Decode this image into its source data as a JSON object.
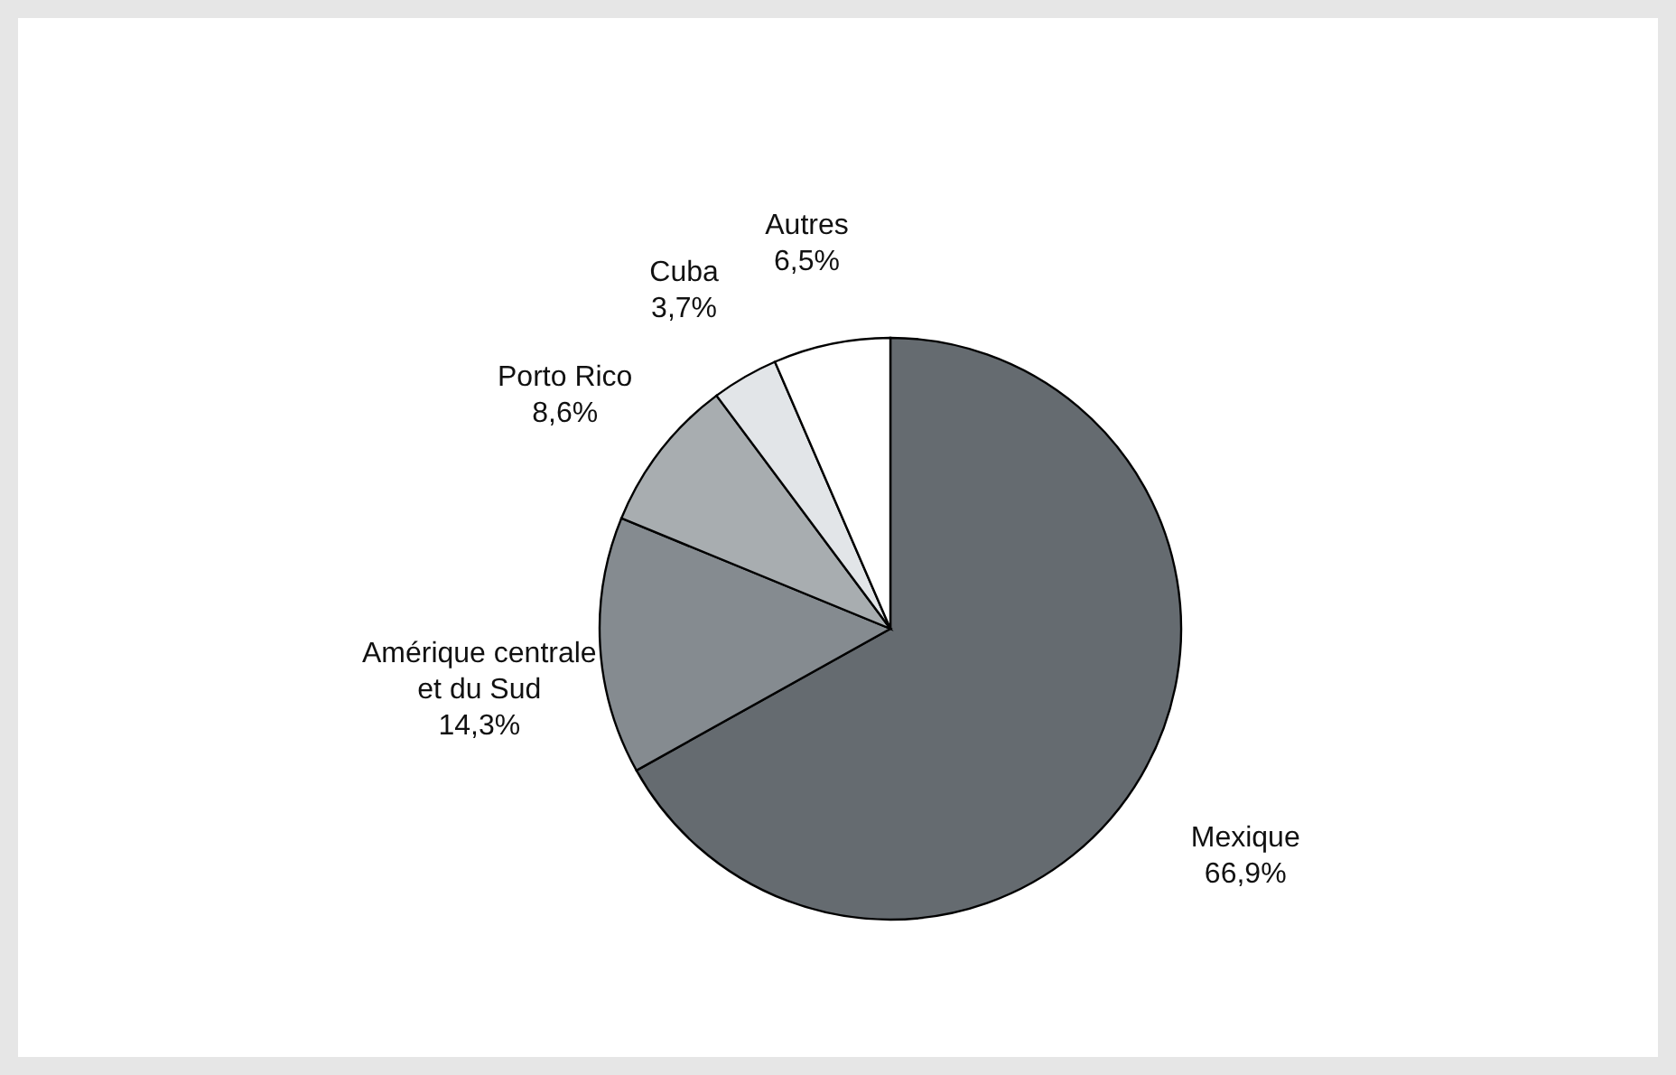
{
  "chart_data": {
    "type": "pie",
    "categories": [
      "Mexique",
      "Amérique centrale et du Sud",
      "Porto Rico",
      "Cuba",
      "Autres"
    ],
    "values": [
      66.9,
      14.3,
      8.6,
      3.7,
      6.5
    ],
    "value_labels": [
      "66,9%",
      "14,3%",
      "8,6%",
      "3,7%",
      "6,5%"
    ],
    "colors": [
      "#656b70",
      "#858b90",
      "#a8adb0",
      "#e2e5e8",
      "#ffffff"
    ]
  }
}
